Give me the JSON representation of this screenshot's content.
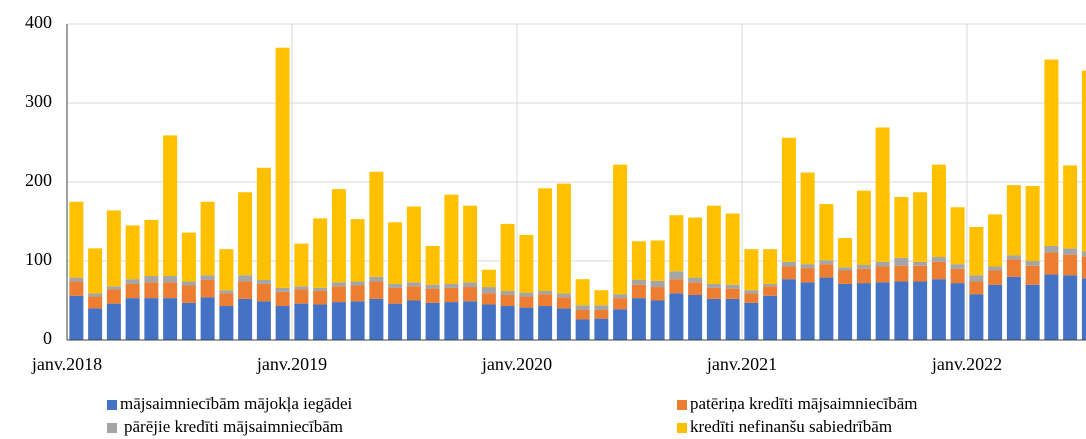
{
  "chart_data": {
    "type": "stacked_bar",
    "categories": [
      "janv.2018",
      null,
      null,
      null,
      null,
      null,
      null,
      null,
      null,
      null,
      null,
      null,
      "janv.2019",
      null,
      null,
      null,
      null,
      null,
      null,
      null,
      null,
      null,
      null,
      null,
      "janv.2020",
      null,
      null,
      null,
      null,
      null,
      null,
      null,
      null,
      null,
      null,
      null,
      "janv.2021",
      null,
      null,
      null,
      null,
      null,
      null,
      null,
      null,
      null,
      null,
      null,
      "janv.2022",
      null,
      null,
      null,
      null,
      null,
      null
    ],
    "series": [
      {
        "name": "mājsaimniecībām mājokļa iegādei",
        "color": "#4472c4",
        "values": [
          56,
          40,
          46,
          53,
          53,
          53,
          47,
          54,
          43,
          52,
          49,
          43,
          46,
          45,
          48,
          49,
          52,
          46,
          50,
          47,
          48,
          49,
          45,
          43,
          41,
          43,
          40,
          26,
          27,
          39,
          53,
          50,
          59,
          57,
          52,
          52,
          47,
          56,
          77,
          73,
          79,
          71,
          72,
          73,
          74,
          74,
          77,
          72,
          58,
          70,
          80,
          70,
          83,
          82,
          78
        ]
      },
      {
        "name": "patēriņa kredīti mājsaimniecībām",
        "color": "#ed7d31",
        "values": [
          18,
          15,
          18,
          18,
          20,
          20,
          22,
          22,
          16,
          22,
          22,
          18,
          18,
          17,
          20,
          20,
          22,
          20,
          18,
          18,
          18,
          18,
          14,
          14,
          14,
          15,
          14,
          12,
          11,
          14,
          17,
          17,
          18,
          16,
          14,
          13,
          12,
          12,
          16,
          18,
          17,
          17,
          18,
          20,
          20,
          20,
          22,
          18,
          16,
          18,
          22,
          24,
          28,
          26,
          28
        ]
      },
      {
        "name": "pārējie kredīti mājsaimniecībām",
        "color": "#a5a5a5",
        "values": [
          5,
          4,
          4,
          6,
          8,
          8,
          5,
          6,
          4,
          8,
          5,
          5,
          4,
          4,
          5,
          5,
          6,
          5,
          5,
          5,
          5,
          6,
          8,
          5,
          5,
          4,
          5,
          6,
          6,
          5,
          6,
          8,
          10,
          6,
          5,
          5,
          4,
          3,
          6,
          5,
          5,
          4,
          5,
          6,
          10,
          5,
          6,
          6,
          8,
          5,
          5,
          6,
          8,
          8,
          6
        ]
      },
      {
        "name": "kredīti nefinanšu sabiedrībām",
        "color": "#ffc000",
        "values": [
          96,
          57,
          96,
          68,
          71,
          178,
          62,
          93,
          52,
          105,
          142,
          304,
          54,
          88,
          118,
          79,
          133,
          78,
          96,
          49,
          113,
          97,
          22,
          85,
          73,
          130,
          139,
          33,
          19,
          164,
          49,
          51,
          71,
          76,
          99,
          90,
          52,
          44,
          157,
          116,
          71,
          37,
          94,
          170,
          77,
          88,
          117,
          72,
          61,
          66,
          89,
          95,
          236,
          105,
          229
        ]
      }
    ],
    "ylim": [
      0,
      400
    ],
    "yticks": [
      0,
      100,
      200,
      300,
      400
    ],
    "grid": true
  }
}
